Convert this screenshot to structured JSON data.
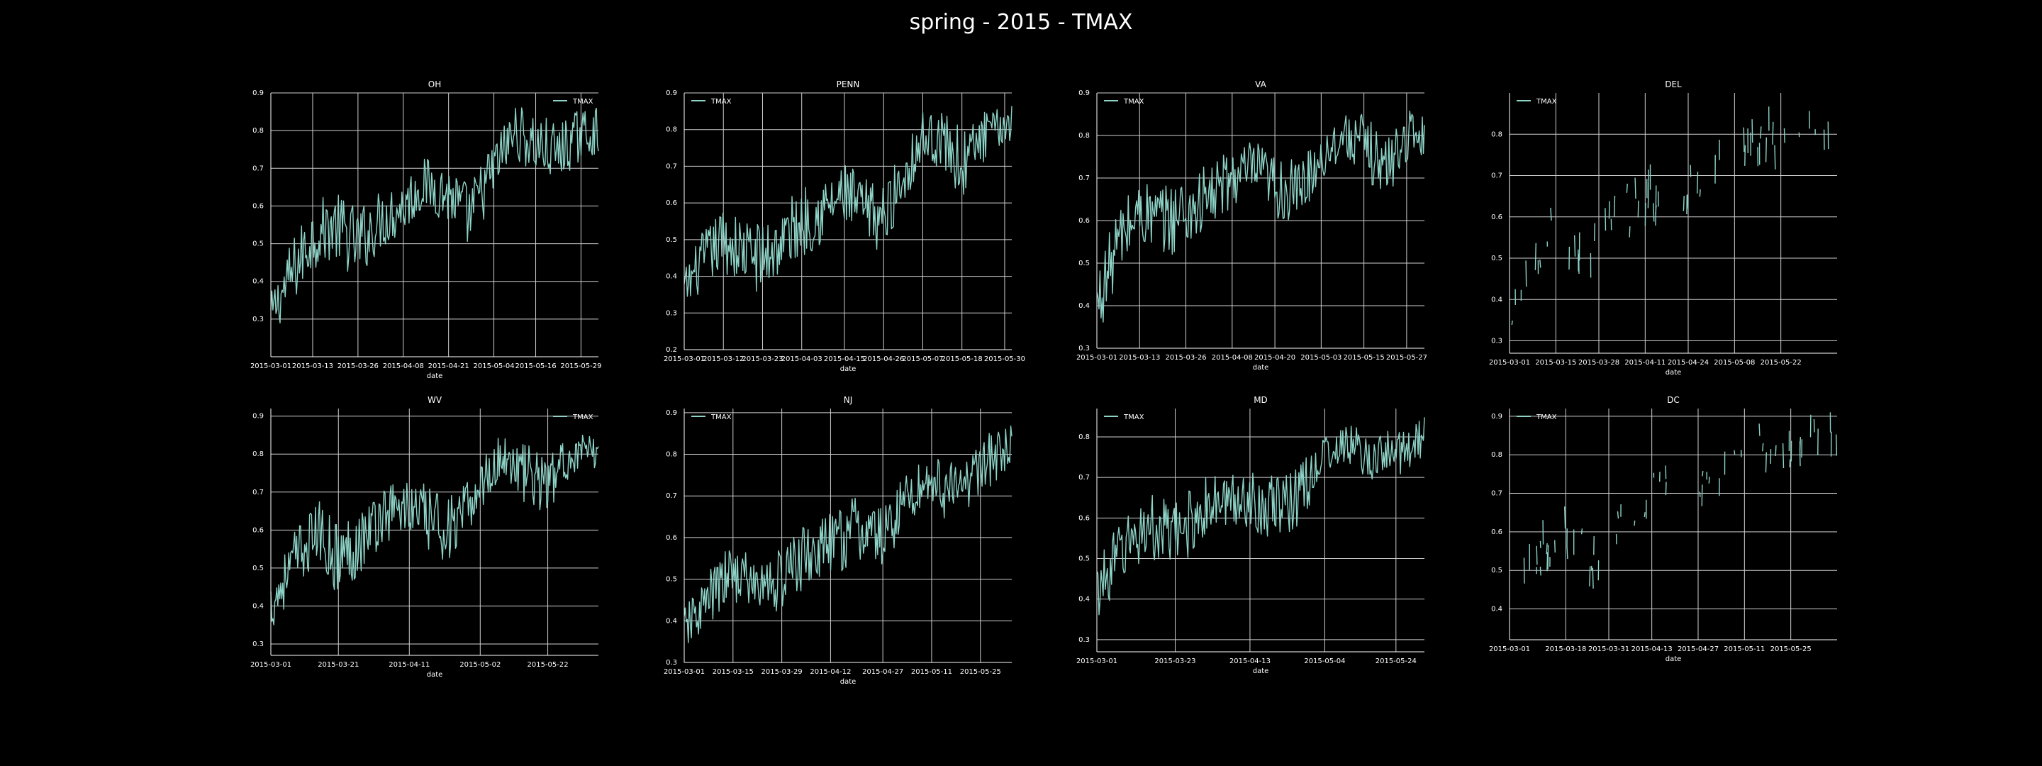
{
  "figure": {
    "title": "spring - 2015 - TMAX",
    "background": "#000000",
    "line_color": "#8dd3c7",
    "grid_color": "#cfcfcf",
    "text_color": "#ffffff"
  },
  "chart_data": [
    {
      "type": "line",
      "title": "OH",
      "xlabel": "date",
      "ylabel": "",
      "grid": true,
      "legend": {
        "entries": [
          "TMAX"
        ],
        "location": "upper right"
      },
      "x_start": "2015-03-01",
      "x_end": "2015-06-03",
      "x_ticks": [
        "2015-03-01",
        "2015-03-13",
        "2015-03-26",
        "2015-04-08",
        "2015-04-21",
        "2015-05-04",
        "2015-05-16",
        "2015-05-29"
      ],
      "ylim": [
        0.2,
        0.9
      ],
      "y_ticks": [
        0.3,
        0.4,
        0.5,
        0.6,
        0.7,
        0.8,
        0.9
      ],
      "series": [
        {
          "name": "TMAX",
          "style": "dense",
          "x": [
            "2015-03-01",
            "2015-03-07",
            "2015-03-13",
            "2015-03-19",
            "2015-03-26",
            "2015-04-01",
            "2015-04-08",
            "2015-04-14",
            "2015-04-21",
            "2015-04-27",
            "2015-05-04",
            "2015-05-10",
            "2015-05-16",
            "2015-05-22",
            "2015-05-29",
            "2015-06-03"
          ],
          "y": [
            0.31,
            0.42,
            0.52,
            0.55,
            0.5,
            0.56,
            0.6,
            0.66,
            0.63,
            0.57,
            0.7,
            0.8,
            0.76,
            0.74,
            0.79,
            0.8
          ],
          "spread": [
            0.06,
            0.09,
            0.09,
            0.09,
            0.1,
            0.08,
            0.08,
            0.07,
            0.08,
            0.09,
            0.08,
            0.07,
            0.09,
            0.08,
            0.07,
            0.06
          ]
        }
      ]
    },
    {
      "type": "line",
      "title": "PENN",
      "xlabel": "date",
      "ylabel": "",
      "grid": true,
      "legend": {
        "entries": [
          "TMAX"
        ],
        "location": "upper left"
      },
      "x_start": "2015-03-01",
      "x_end": "2015-06-01",
      "x_ticks": [
        "2015-03-01",
        "2015-03-12",
        "2015-03-23",
        "2015-04-03",
        "2015-04-15",
        "2015-04-26",
        "2015-05-07",
        "2015-05-18",
        "2015-05-30"
      ],
      "ylim": [
        0.2,
        0.9
      ],
      "y_ticks": [
        0.2,
        0.3,
        0.4,
        0.5,
        0.6,
        0.7,
        0.8,
        0.9
      ],
      "series": [
        {
          "name": "TMAX",
          "style": "dense",
          "x": [
            "2015-03-01",
            "2015-03-06",
            "2015-03-12",
            "2015-03-17",
            "2015-03-23",
            "2015-03-29",
            "2015-04-03",
            "2015-04-09",
            "2015-04-15",
            "2015-04-21",
            "2015-04-26",
            "2015-05-02",
            "2015-05-07",
            "2015-05-13",
            "2015-05-18",
            "2015-05-24",
            "2015-05-30",
            "2015-06-01"
          ],
          "y": [
            0.36,
            0.44,
            0.5,
            0.47,
            0.45,
            0.5,
            0.55,
            0.58,
            0.62,
            0.57,
            0.56,
            0.68,
            0.78,
            0.77,
            0.7,
            0.78,
            0.81,
            0.82
          ],
          "spread": [
            0.06,
            0.08,
            0.09,
            0.09,
            0.1,
            0.1,
            0.1,
            0.09,
            0.09,
            0.1,
            0.09,
            0.08,
            0.07,
            0.08,
            0.1,
            0.07,
            0.05,
            0.05
          ]
        }
      ]
    },
    {
      "type": "line",
      "title": "VA",
      "xlabel": "date",
      "ylabel": "",
      "grid": true,
      "legend": {
        "entries": [
          "TMAX"
        ],
        "location": "upper left"
      },
      "x_start": "2015-03-01",
      "x_end": "2015-06-01",
      "x_ticks": [
        "2015-03-01",
        "2015-03-13",
        "2015-03-26",
        "2015-04-08",
        "2015-04-20",
        "2015-05-03",
        "2015-05-15",
        "2015-05-27"
      ],
      "ylim": [
        0.3,
        0.9
      ],
      "y_ticks": [
        0.3,
        0.4,
        0.5,
        0.6,
        0.7,
        0.8,
        0.9
      ],
      "series": [
        {
          "name": "TMAX",
          "style": "dense",
          "x": [
            "2015-03-01",
            "2015-03-07",
            "2015-03-13",
            "2015-03-19",
            "2015-03-26",
            "2015-04-01",
            "2015-04-08",
            "2015-04-14",
            "2015-04-20",
            "2015-04-26",
            "2015-05-03",
            "2015-05-09",
            "2015-05-15",
            "2015-05-21",
            "2015-05-27",
            "2015-06-01"
          ],
          "y": [
            0.4,
            0.55,
            0.62,
            0.6,
            0.62,
            0.65,
            0.7,
            0.72,
            0.68,
            0.66,
            0.75,
            0.8,
            0.78,
            0.72,
            0.8,
            0.8
          ],
          "spread": [
            0.08,
            0.09,
            0.08,
            0.08,
            0.1,
            0.08,
            0.07,
            0.07,
            0.08,
            0.08,
            0.06,
            0.05,
            0.07,
            0.08,
            0.06,
            0.05
          ]
        }
      ]
    },
    {
      "type": "line",
      "title": "DEL",
      "xlabel": "date",
      "ylabel": "",
      "grid": true,
      "legend": {
        "entries": [
          "TMAX"
        ],
        "location": "upper left"
      },
      "x_start": "2015-03-01",
      "x_end": "2015-06-08",
      "x_ticks": [
        "2015-03-01",
        "2015-03-15",
        "2015-03-28",
        "2015-04-11",
        "2015-04-24",
        "2015-05-08",
        "2015-05-22"
      ],
      "ylim": [
        0.27,
        0.9
      ],
      "y_ticks": [
        0.3,
        0.4,
        0.5,
        0.6,
        0.7,
        0.8
      ],
      "series": [
        {
          "name": "TMAX",
          "style": "sparse",
          "x": [
            "2015-03-01",
            "2015-03-08",
            "2015-03-15",
            "2015-03-22",
            "2015-03-29",
            "2015-04-05",
            "2015-04-12",
            "2015-04-19",
            "2015-04-26",
            "2015-05-03",
            "2015-05-10",
            "2015-05-17",
            "2015-05-24",
            "2015-05-31",
            "2015-06-07"
          ],
          "y": [
            0.36,
            0.52,
            0.58,
            0.5,
            0.55,
            0.62,
            0.64,
            0.7,
            0.66,
            0.72,
            0.78,
            0.8,
            0.78,
            0.8,
            0.84
          ],
          "spread": [
            0.06,
            0.06,
            0.07,
            0.06,
            0.06,
            0.06,
            0.06,
            0.05,
            0.06,
            0.05,
            0.05,
            0.05,
            0.05,
            0.04,
            0.04
          ]
        }
      ]
    },
    {
      "type": "line",
      "title": "WV",
      "xlabel": "date",
      "ylabel": "",
      "grid": true,
      "legend": {
        "entries": [
          "TMAX"
        ],
        "location": "upper right"
      },
      "x_start": "2015-03-01",
      "x_end": "2015-06-06",
      "x_ticks": [
        "2015-03-01",
        "2015-03-21",
        "2015-04-11",
        "2015-05-02",
        "2015-05-22"
      ],
      "ylim": [
        0.27,
        0.92
      ],
      "y_ticks": [
        0.3,
        0.4,
        0.5,
        0.6,
        0.7,
        0.8,
        0.9
      ],
      "series": [
        {
          "name": "TMAX",
          "style": "dense",
          "x": [
            "2015-03-01",
            "2015-03-08",
            "2015-03-15",
            "2015-03-21",
            "2015-03-28",
            "2015-04-04",
            "2015-04-11",
            "2015-04-18",
            "2015-04-25",
            "2015-05-02",
            "2015-05-09",
            "2015-05-15",
            "2015-05-22",
            "2015-05-29",
            "2015-06-06"
          ],
          "y": [
            0.4,
            0.52,
            0.6,
            0.52,
            0.58,
            0.65,
            0.66,
            0.62,
            0.6,
            0.72,
            0.8,
            0.75,
            0.72,
            0.8,
            0.8
          ],
          "spread": [
            0.07,
            0.08,
            0.08,
            0.1,
            0.09,
            0.08,
            0.08,
            0.09,
            0.09,
            0.07,
            0.06,
            0.08,
            0.08,
            0.05,
            0.05
          ]
        }
      ]
    },
    {
      "type": "line",
      "title": "NJ",
      "xlabel": "date",
      "ylabel": "",
      "grid": true,
      "legend": {
        "entries": [
          "TMAX"
        ],
        "location": "upper left"
      },
      "x_start": "2015-03-01",
      "x_end": "2015-06-03",
      "x_ticks": [
        "2015-03-01",
        "2015-03-15",
        "2015-03-29",
        "2015-04-12",
        "2015-04-27",
        "2015-05-11",
        "2015-05-25"
      ],
      "ylim": [
        0.3,
        0.91
      ],
      "y_ticks": [
        0.3,
        0.4,
        0.5,
        0.6,
        0.7,
        0.8,
        0.9
      ],
      "series": [
        {
          "name": "TMAX",
          "style": "dense",
          "x": [
            "2015-03-01",
            "2015-03-08",
            "2015-03-15",
            "2015-03-22",
            "2015-03-29",
            "2015-04-05",
            "2015-04-12",
            "2015-04-19",
            "2015-04-27",
            "2015-05-04",
            "2015-05-11",
            "2015-05-18",
            "2015-05-25",
            "2015-06-01",
            "2015-06-03"
          ],
          "y": [
            0.38,
            0.45,
            0.52,
            0.48,
            0.5,
            0.56,
            0.58,
            0.62,
            0.6,
            0.7,
            0.74,
            0.7,
            0.78,
            0.8,
            0.82
          ],
          "spread": [
            0.05,
            0.07,
            0.07,
            0.07,
            0.08,
            0.08,
            0.08,
            0.08,
            0.08,
            0.07,
            0.07,
            0.08,
            0.07,
            0.06,
            0.05
          ]
        }
      ]
    },
    {
      "type": "line",
      "title": "MD",
      "xlabel": "date",
      "ylabel": "",
      "grid": true,
      "legend": {
        "entries": [
          "TMAX"
        ],
        "location": "upper left"
      },
      "x_start": "2015-03-01",
      "x_end": "2015-06-01",
      "x_ticks": [
        "2015-03-01",
        "2015-03-23",
        "2015-04-13",
        "2015-05-04",
        "2015-05-24"
      ],
      "ylim": [
        0.27,
        0.87
      ],
      "y_ticks": [
        0.3,
        0.4,
        0.5,
        0.6,
        0.7,
        0.8
      ],
      "series": [
        {
          "name": "TMAX",
          "style": "dense",
          "x": [
            "2015-03-01",
            "2015-03-08",
            "2015-03-15",
            "2015-03-23",
            "2015-03-30",
            "2015-04-06",
            "2015-04-13",
            "2015-04-20",
            "2015-04-27",
            "2015-05-04",
            "2015-05-11",
            "2015-05-18",
            "2015-05-24",
            "2015-06-01"
          ],
          "y": [
            0.42,
            0.52,
            0.58,
            0.55,
            0.62,
            0.64,
            0.65,
            0.62,
            0.66,
            0.76,
            0.78,
            0.74,
            0.76,
            0.8
          ],
          "spread": [
            0.07,
            0.08,
            0.08,
            0.09,
            0.08,
            0.07,
            0.08,
            0.08,
            0.08,
            0.05,
            0.05,
            0.07,
            0.06,
            0.05
          ]
        }
      ]
    },
    {
      "type": "line",
      "title": "DC",
      "xlabel": "date",
      "ylabel": "",
      "grid": true,
      "legend": {
        "entries": [
          "TMAX"
        ],
        "location": "upper left"
      },
      "x_start": "2015-03-01",
      "x_end": "2015-06-08",
      "x_ticks": [
        "2015-03-01",
        "2015-03-18",
        "2015-03-31",
        "2015-04-13",
        "2015-04-27",
        "2015-05-11",
        "2015-05-25"
      ],
      "ylim": [
        0.32,
        0.92
      ],
      "y_ticks": [
        0.4,
        0.5,
        0.6,
        0.7,
        0.8,
        0.9
      ],
      "series": [
        {
          "name": "TMAX",
          "style": "sparse",
          "x": [
            "2015-03-01",
            "2015-03-08",
            "2015-03-15",
            "2015-03-22",
            "2015-03-29",
            "2015-04-05",
            "2015-04-12",
            "2015-04-19",
            "2015-04-26",
            "2015-05-03",
            "2015-05-10",
            "2015-05-17",
            "2015-05-24",
            "2015-05-31",
            "2015-06-07"
          ],
          "y": [
            0.42,
            0.5,
            0.6,
            0.55,
            0.52,
            0.66,
            0.7,
            0.72,
            0.7,
            0.76,
            0.8,
            0.82,
            0.8,
            0.84,
            0.86
          ],
          "spread": [
            0.06,
            0.06,
            0.06,
            0.06,
            0.06,
            0.06,
            0.05,
            0.05,
            0.05,
            0.05,
            0.05,
            0.05,
            0.05,
            0.04,
            0.04
          ]
        }
      ]
    }
  ]
}
